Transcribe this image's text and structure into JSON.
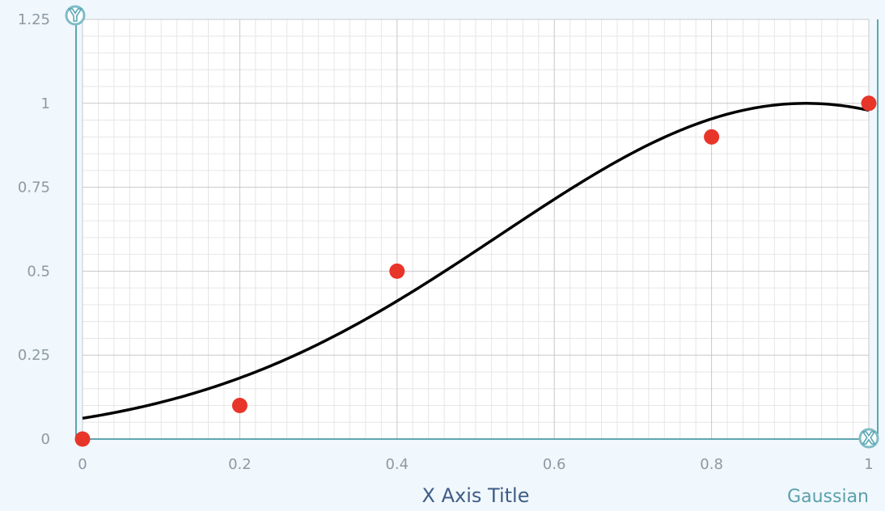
{
  "chart_data": {
    "type": "scatter",
    "title": "",
    "xlabel": "X Axis Title",
    "ylabel": "",
    "xlim": [
      0,
      1
    ],
    "ylim": [
      0,
      1.25
    ],
    "x_ticks": [
      "0",
      "0.2",
      "0.4",
      "0.6",
      "0.8",
      "1"
    ],
    "y_ticks": [
      "0",
      "0.25",
      "0.5",
      "0.75",
      "1",
      "1.25"
    ],
    "grid": true,
    "points": {
      "x": [
        0,
        0.2,
        0.4,
        0.8,
        1
      ],
      "y": [
        0,
        0.1,
        0.5,
        0.9,
        1
      ],
      "color": "#e8352a"
    },
    "fit": {
      "label": "Gaussian",
      "color": "#000000",
      "amplitude": 1.0,
      "center": 0.92,
      "sigma": 0.39
    },
    "axis_handles": {
      "x": "X",
      "y": "Y"
    }
  },
  "colors": {
    "background": "#f0f7fd",
    "plot_background": "#ffffff",
    "axis": "#2e8a93",
    "grid_major": "#c8c8c8",
    "grid_minor": "#e6e6e6"
  }
}
